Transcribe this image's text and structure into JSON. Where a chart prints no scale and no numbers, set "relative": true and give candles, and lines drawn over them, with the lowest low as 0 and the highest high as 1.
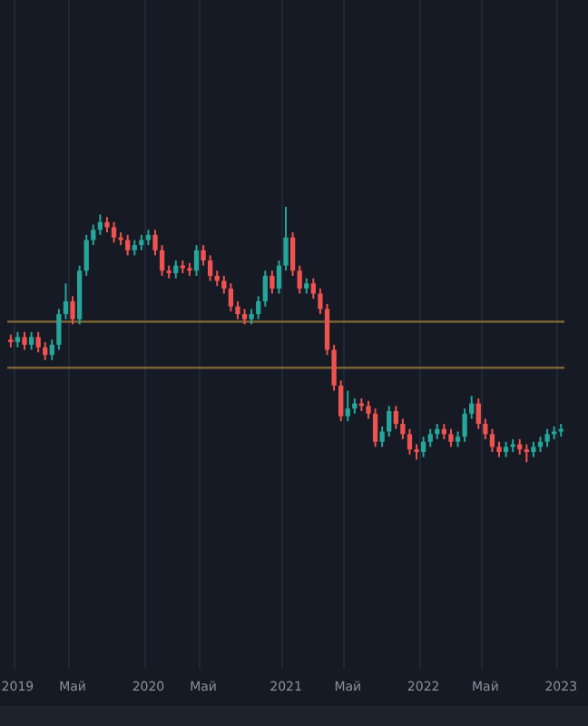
{
  "chart_data": {
    "type": "candlestick",
    "relative": true,
    "grid": "x",
    "legend": false,
    "categories": [
      null,
      "2019",
      null,
      null,
      null,
      null,
      null,
      null,
      null,
      "Май",
      null,
      null,
      null,
      null,
      null,
      null,
      null,
      null,
      null,
      null,
      "2020",
      null,
      null,
      null,
      null,
      null,
      null,
      null,
      "Май",
      null,
      null,
      null,
      null,
      null,
      null,
      null,
      null,
      null,
      null,
      null,
      "2021",
      null,
      null,
      null,
      null,
      null,
      null,
      null,
      null,
      "Май",
      null,
      null,
      null,
      null,
      null,
      null,
      null,
      null,
      null,
      null,
      "2022",
      null,
      null,
      null,
      null,
      null,
      null,
      null,
      null,
      "Май",
      null,
      null,
      null,
      null,
      null,
      null,
      null,
      null,
      null,
      null,
      "2023"
    ],
    "ohlc": [
      [
        0.48,
        0.5,
        0.45,
        0.47
      ],
      [
        0.47,
        0.51,
        0.45,
        0.49
      ],
      [
        0.49,
        0.51,
        0.44,
        0.46
      ],
      [
        0.46,
        0.51,
        0.44,
        0.49
      ],
      [
        0.49,
        0.51,
        0.43,
        0.45
      ],
      [
        0.45,
        0.47,
        0.4,
        0.42
      ],
      [
        0.42,
        0.48,
        0.4,
        0.46
      ],
      [
        0.46,
        0.6,
        0.44,
        0.58
      ],
      [
        0.58,
        0.7,
        0.56,
        0.63
      ],
      [
        0.63,
        0.65,
        0.54,
        0.56
      ],
      [
        0.56,
        0.77,
        0.54,
        0.75
      ],
      [
        0.75,
        0.89,
        0.73,
        0.87
      ],
      [
        0.87,
        0.93,
        0.85,
        0.91
      ],
      [
        0.91,
        0.97,
        0.89,
        0.94
      ],
      [
        0.94,
        0.96,
        0.9,
        0.92
      ],
      [
        0.92,
        0.94,
        0.86,
        0.88
      ],
      [
        0.88,
        0.9,
        0.85,
        0.87
      ],
      [
        0.87,
        0.89,
        0.81,
        0.83
      ],
      [
        0.83,
        0.87,
        0.81,
        0.85
      ],
      [
        0.85,
        0.89,
        0.83,
        0.87
      ],
      [
        0.87,
        0.91,
        0.85,
        0.89
      ],
      [
        0.89,
        0.91,
        0.81,
        0.83
      ],
      [
        0.83,
        0.85,
        0.73,
        0.75
      ],
      [
        0.75,
        0.77,
        0.72,
        0.74
      ],
      [
        0.74,
        0.79,
        0.72,
        0.77
      ],
      [
        0.77,
        0.79,
        0.74,
        0.76
      ],
      [
        0.76,
        0.78,
        0.73,
        0.75
      ],
      [
        0.75,
        0.85,
        0.73,
        0.83
      ],
      [
        0.83,
        0.85,
        0.77,
        0.79
      ],
      [
        0.79,
        0.81,
        0.71,
        0.73
      ],
      [
        0.73,
        0.75,
        0.69,
        0.71
      ],
      [
        0.71,
        0.73,
        0.66,
        0.68
      ],
      [
        0.68,
        0.7,
        0.59,
        0.61
      ],
      [
        0.61,
        0.63,
        0.56,
        0.58
      ],
      [
        0.58,
        0.6,
        0.54,
        0.56
      ],
      [
        0.56,
        0.6,
        0.54,
        0.58
      ],
      [
        0.58,
        0.65,
        0.56,
        0.63
      ],
      [
        0.63,
        0.75,
        0.61,
        0.73
      ],
      [
        0.73,
        0.75,
        0.66,
        0.68
      ],
      [
        0.68,
        0.79,
        0.66,
        0.77
      ],
      [
        0.77,
        1,
        0.75,
        0.88
      ],
      [
        0.88,
        0.9,
        0.73,
        0.75
      ],
      [
        0.75,
        0.77,
        0.66,
        0.68
      ],
      [
        0.68,
        0.72,
        0.66,
        0.7
      ],
      [
        0.7,
        0.72,
        0.64,
        0.66
      ],
      [
        0.66,
        0.68,
        0.58,
        0.6
      ],
      [
        0.6,
        0.62,
        0.42,
        0.44
      ],
      [
        0.44,
        0.46,
        0.28,
        0.3
      ],
      [
        0.3,
        0.32,
        0.16,
        0.18
      ],
      [
        0.18,
        0.28,
        0.16,
        0.21
      ],
      [
        0.21,
        0.25,
        0.19,
        0.23
      ],
      [
        0.23,
        0.25,
        0.2,
        0.22
      ],
      [
        0.22,
        0.24,
        0.17,
        0.19
      ],
      [
        0.19,
        0.21,
        0.06,
        0.08
      ],
      [
        0.08,
        0.14,
        0.06,
        0.12
      ],
      [
        0.12,
        0.22,
        0.1,
        0.2
      ],
      [
        0.2,
        0.22,
        0.13,
        0.15
      ],
      [
        0.15,
        0.17,
        0.09,
        0.11
      ],
      [
        0.11,
        0.13,
        0.03,
        0.05
      ],
      [
        0.05,
        0.07,
        0.01,
        0.04
      ],
      [
        0.04,
        0.1,
        0.02,
        0.08
      ],
      [
        0.08,
        0.13,
        0.06,
        0.11
      ],
      [
        0.11,
        0.15,
        0.09,
        0.13
      ],
      [
        0.13,
        0.15,
        0.09,
        0.11
      ],
      [
        0.11,
        0.13,
        0.06,
        0.08
      ],
      [
        0.08,
        0.12,
        0.06,
        0.1
      ],
      [
        0.1,
        0.21,
        0.08,
        0.19
      ],
      [
        0.19,
        0.26,
        0.17,
        0.23
      ],
      [
        0.23,
        0.25,
        0.13,
        0.15
      ],
      [
        0.15,
        0.17,
        0.09,
        0.11
      ],
      [
        0.11,
        0.13,
        0.04,
        0.06
      ],
      [
        0.06,
        0.08,
        0.02,
        0.04
      ],
      [
        0.04,
        0.08,
        0.02,
        0.06
      ],
      [
        0.06,
        0.09,
        0.04,
        0.07
      ],
      [
        0.07,
        0.09,
        0.03,
        0.05
      ],
      [
        0.05,
        0.07,
        0,
        0.04
      ],
      [
        0.04,
        0.08,
        0.02,
        0.06
      ],
      [
        0.06,
        0.1,
        0.04,
        0.08
      ],
      [
        0.08,
        0.13,
        0.06,
        0.11
      ],
      [
        0.11,
        0.14,
        0.09,
        0.12
      ],
      [
        0.12,
        0.15,
        0.1,
        0.13
      ]
    ],
    "colors": [
      "#ef5350",
      "#26a69a",
      "#ef5350",
      "#26a69a",
      "#ef5350",
      "#ef5350",
      "#26a69a",
      "#26a69a",
      "#26a69a",
      "#ef5350",
      "#26a69a",
      "#26a69a",
      "#26a69a",
      "#26a69a",
      "#ef5350",
      "#ef5350",
      "#ef5350",
      "#ef5350",
      "#26a69a",
      "#26a69a",
      "#26a69a",
      "#ef5350",
      "#ef5350",
      "#ef5350",
      "#26a69a",
      "#ef5350",
      "#ef5350",
      "#26a69a",
      "#ef5350",
      "#ef5350",
      "#ef5350",
      "#ef5350",
      "#ef5350",
      "#ef5350",
      "#ef5350",
      "#26a69a",
      "#26a69a",
      "#26a69a",
      "#ef5350",
      "#26a69a",
      "#26a69a",
      "#ef5350",
      "#ef5350",
      "#26a69a",
      "#ef5350",
      "#ef5350",
      "#ef5350",
      "#ef5350",
      "#ef5350",
      "#26a69a",
      "#26a69a",
      "#ef5350",
      "#ef5350",
      "#ef5350",
      "#26a69a",
      "#26a69a",
      "#ef5350",
      "#ef5350",
      "#ef5350",
      "#ef5350",
      "#26a69a",
      "#26a69a",
      "#26a69a",
      "#ef5350",
      "#ef5350",
      "#26a69a",
      "#26a69a",
      "#26a69a",
      "#ef5350",
      "#ef5350",
      "#ef5350",
      "#ef5350",
      "#26a69a",
      "#26a69a",
      "#ef5350",
      "#ef5350",
      "#26a69a",
      "#26a69a",
      "#26a69a",
      "#26a69a",
      "#26a69a"
    ],
    "ref_lines": [
      {
        "axis": "y",
        "value": 0.55,
        "color": "#7a6233"
      },
      {
        "axis": "y",
        "value": 0.37,
        "color": "#7a6233"
      }
    ]
  }
}
